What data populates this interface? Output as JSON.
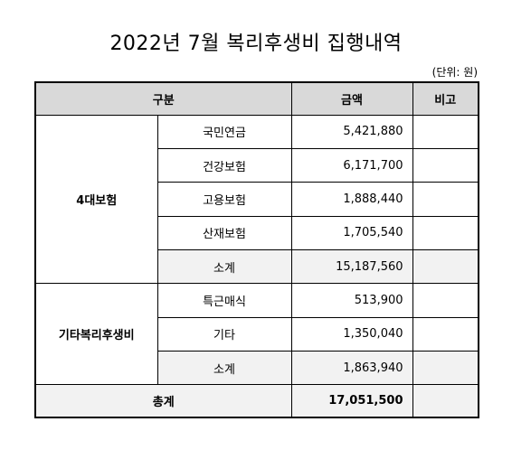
{
  "title": "2022년 7월 복리후생비 집행내역",
  "unit_note": "(단위: 원)",
  "table": {
    "headers": {
      "category": "구분",
      "amount": "금액",
      "remarks": "비고"
    },
    "groups": [
      {
        "name": "4대보험",
        "items": [
          {
            "label": "국민연금",
            "amount": "5,421,880",
            "remark": ""
          },
          {
            "label": "건강보험",
            "amount": "6,171,700",
            "remark": ""
          },
          {
            "label": "고용보험",
            "amount": "1,888,440",
            "remark": ""
          },
          {
            "label": "산재보험",
            "amount": "1,705,540",
            "remark": ""
          }
        ],
        "subtotal": {
          "label": "소계",
          "amount": "15,187,560",
          "remark": ""
        }
      },
      {
        "name": "기타복리후생비",
        "items": [
          {
            "label": "특근매식",
            "amount": "513,900",
            "remark": ""
          },
          {
            "label": "기타",
            "amount": "1,350,040",
            "remark": ""
          }
        ],
        "subtotal": {
          "label": "소계",
          "amount": "1,863,940",
          "remark": ""
        }
      }
    ],
    "total": {
      "label": "총계",
      "amount": "17,051,500",
      "remark": ""
    }
  }
}
